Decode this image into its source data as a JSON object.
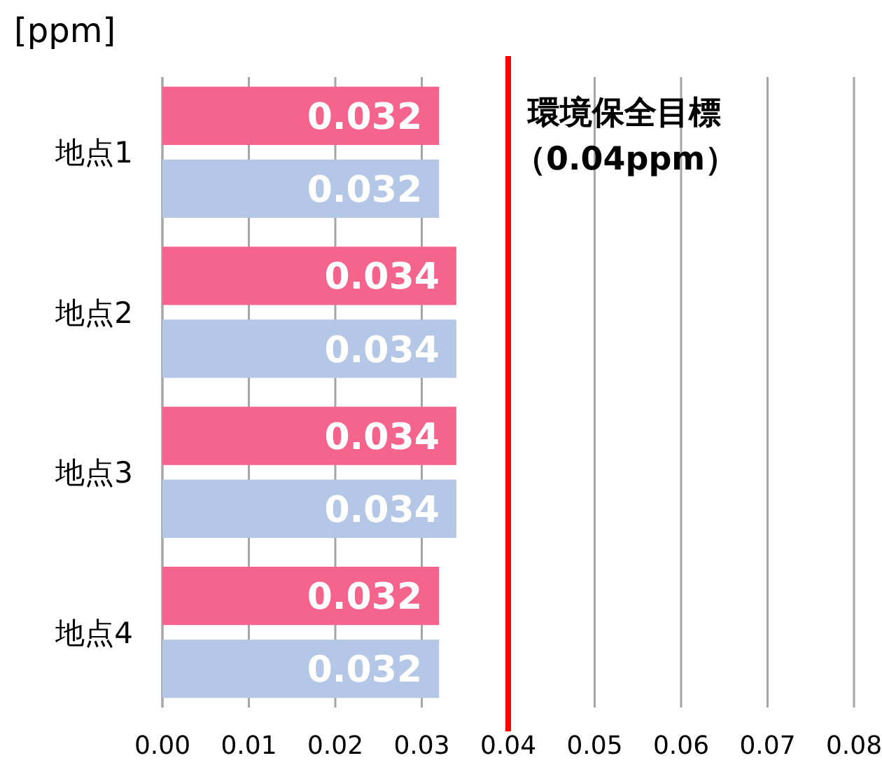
{
  "chart_data": {
    "type": "bar",
    "orientation": "horizontal",
    "xlabel": "[ppm]",
    "categories": [
      "地点1",
      "地点2",
      "地点3",
      "地点4"
    ],
    "series": [
      {
        "color": "#f5648c",
        "values": [
          0.032,
          0.034,
          0.034,
          0.032
        ]
      },
      {
        "color": "#b4c7e7",
        "values": [
          0.032,
          0.034,
          0.034,
          0.032
        ]
      }
    ],
    "xlim": [
      0,
      0.08
    ],
    "xticks": [
      {
        "value": 0,
        "label": "0.00"
      },
      {
        "value": 0.01,
        "label": "0.01"
      },
      {
        "value": 0.02,
        "label": "0.02"
      },
      {
        "value": 0.03,
        "label": "0.03"
      },
      {
        "value": 0.04,
        "label": "0.04"
      },
      {
        "value": 0.05,
        "label": "0.05"
      },
      {
        "value": 0.06,
        "label": "0.06"
      },
      {
        "value": 0.07,
        "label": "0.07"
      },
      {
        "value": 0.08,
        "label": "0.08"
      }
    ],
    "grid": "x",
    "data_labels": true,
    "ref_lines": [
      {
        "axis": "x",
        "value": 0.04,
        "label": "環境保全目標（0.04ppm）",
        "color": "#ff0000"
      }
    ]
  }
}
